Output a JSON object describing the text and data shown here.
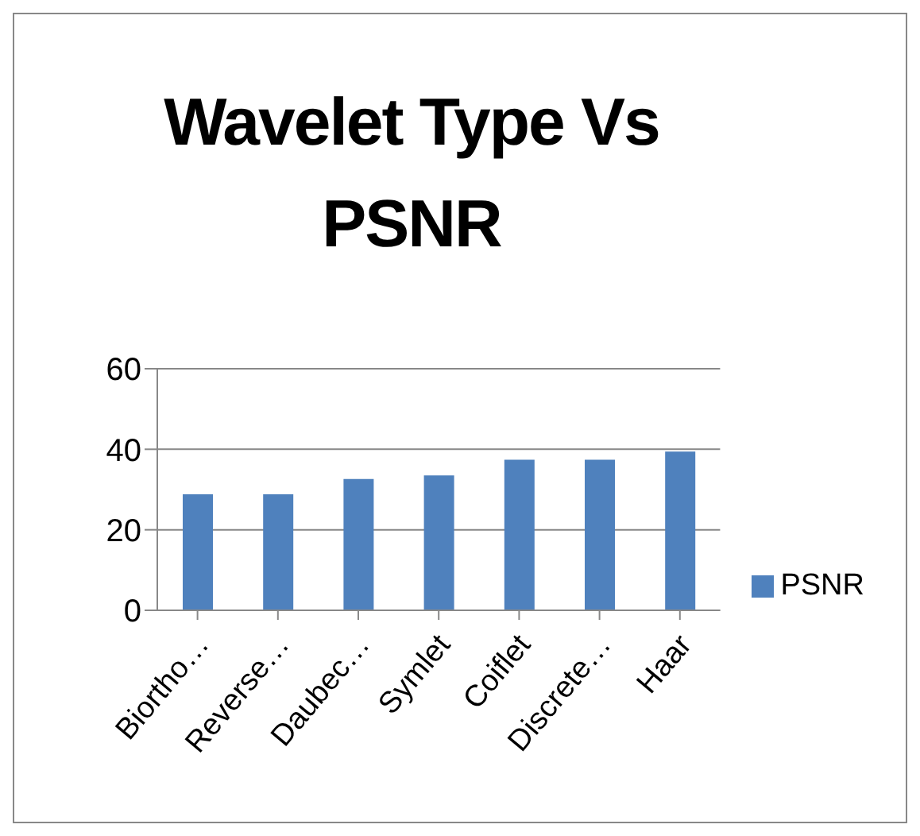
{
  "chart_data": {
    "type": "bar",
    "title": "Wavelet Type Vs PSNR",
    "categories": [
      "Biortho…",
      "Reverse…",
      "Daubec…",
      "Symlet",
      "Coiflet",
      "Discrete…",
      "Haar"
    ],
    "series": [
      {
        "name": "PSNR",
        "color": "#4f81bd",
        "values": [
          28.8,
          28.8,
          32.6,
          33.5,
          37.4,
          37.4,
          39.4
        ]
      }
    ],
    "ylim": [
      0,
      60
    ],
    "yticks": [
      0,
      20,
      40,
      60
    ],
    "grid": "y",
    "legend": "right"
  }
}
